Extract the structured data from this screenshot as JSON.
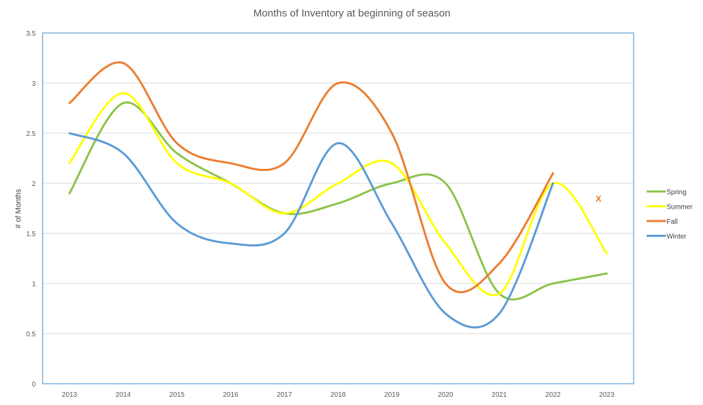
{
  "chart_data": {
    "type": "line",
    "title": "Months of Inventory at beginning of season",
    "xlabel": "",
    "ylabel": "# of Months",
    "categories": [
      "2013",
      "2014",
      "2015",
      "2016",
      "2017",
      "2018",
      "2019",
      "2020",
      "2021",
      "2022",
      "2023"
    ],
    "ylim": [
      0,
      3.5
    ],
    "yticks": [
      0,
      0.5,
      1,
      1.5,
      2,
      2.5,
      3,
      3.5
    ],
    "ytick_labels": [
      "0",
      "0.5",
      "1",
      "1.5",
      "2",
      "2.5",
      "3",
      "3.5"
    ],
    "grid": true,
    "smooth": true,
    "legend_position": "right",
    "series": [
      {
        "name": "Spring",
        "color": "#8bc34a",
        "values": [
          1.9,
          2.8,
          2.3,
          2.0,
          1.7,
          1.8,
          2.0,
          2.0,
          0.9,
          1.0,
          1.1
        ]
      },
      {
        "name": "Summer",
        "color": "#ffff00",
        "values": [
          2.2,
          2.9,
          2.2,
          2.0,
          1.7,
          2.0,
          2.2,
          1.4,
          0.9,
          2.0,
          1.3
        ]
      },
      {
        "name": "Fall",
        "color": "#ed7d31",
        "values": [
          2.8,
          3.2,
          2.4,
          2.2,
          2.2,
          3.0,
          2.5,
          1.0,
          1.2,
          2.1,
          null
        ]
      },
      {
        "name": "Winter",
        "color": "#5b9bd5",
        "values": [
          2.5,
          2.3,
          1.6,
          1.4,
          1.5,
          2.4,
          1.6,
          0.7,
          0.7,
          2.0,
          null
        ]
      }
    ],
    "annotations": [
      {
        "text": "X",
        "series": "Fall",
        "x": "2023",
        "y": 1.85,
        "color": "#ed7d31"
      }
    ]
  }
}
